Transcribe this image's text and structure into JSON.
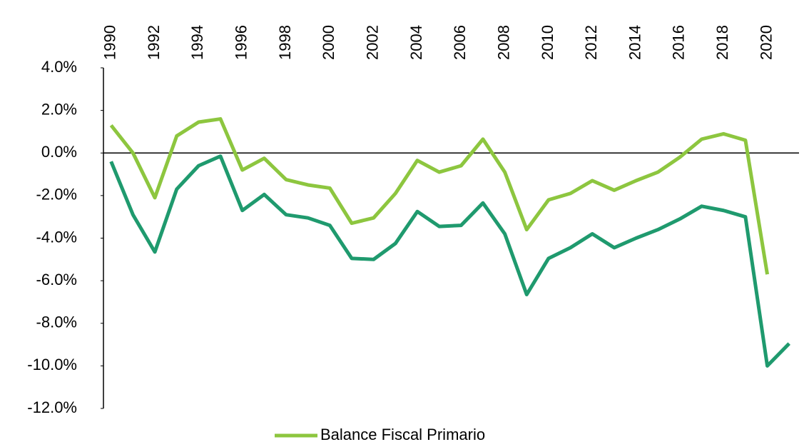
{
  "chart_data": {
    "type": "line",
    "x": [
      1990,
      1991,
      1992,
      1993,
      1994,
      1995,
      1996,
      1997,
      1998,
      1999,
      2000,
      2001,
      2002,
      2003,
      2004,
      2005,
      2006,
      2007,
      2008,
      2009,
      2010,
      2011,
      2012,
      2013,
      2014,
      2015,
      2016,
      2017,
      2018,
      2019,
      2020,
      2021
    ],
    "series": [
      {
        "name": "Balance Fiscal Primario",
        "color": "#8dc63f",
        "values": [
          1.3,
          0.0,
          -2.1,
          0.8,
          1.45,
          1.6,
          -0.8,
          -0.25,
          -1.25,
          -1.5,
          -1.65,
          -3.3,
          -3.05,
          -1.9,
          -0.35,
          -0.9,
          -0.6,
          0.65,
          -0.9,
          -3.6,
          -2.2,
          -1.9,
          -1.3,
          -1.75,
          -1.3,
          -0.9,
          -0.2,
          0.65,
          0.9,
          0.6,
          -5.7,
          null
        ]
      },
      {
        "color": "#1f9a6e",
        "values": [
          -0.4,
          -2.9,
          -4.65,
          -1.7,
          -0.6,
          -0.15,
          -2.7,
          -1.95,
          -2.9,
          -3.05,
          -3.4,
          -4.95,
          -5.0,
          -4.25,
          -2.75,
          -3.45,
          -3.4,
          -2.35,
          -3.8,
          -6.65,
          -4.95,
          -4.45,
          -3.8,
          -4.45,
          -4.0,
          -3.6,
          -3.1,
          -2.5,
          -2.7,
          -3.0,
          -10.0,
          -8.95
        ]
      }
    ],
    "xlim": [
      1989.65,
      2021.45
    ],
    "xticks": [
      1990,
      1992,
      1994,
      1996,
      1998,
      2000,
      2002,
      2004,
      2006,
      2008,
      2010,
      2012,
      2014,
      2016,
      2018,
      2020
    ],
    "ylim": [
      -12,
      4
    ],
    "yticks": [
      {
        "value": 4,
        "label": "4.0%"
      },
      {
        "value": 2,
        "label": "2.0%"
      },
      {
        "value": 0,
        "label": "0.0%"
      },
      {
        "value": -2,
        "label": "-2.0%"
      },
      {
        "value": -4,
        "label": "-4.0%"
      },
      {
        "value": -6,
        "label": "-6.0%"
      },
      {
        "value": -8,
        "label": "-8.0%"
      },
      {
        "value": -10,
        "label": "-10.0%"
      },
      {
        "value": -12,
        "label": "-12.0%"
      }
    ],
    "legend": "bottom"
  }
}
